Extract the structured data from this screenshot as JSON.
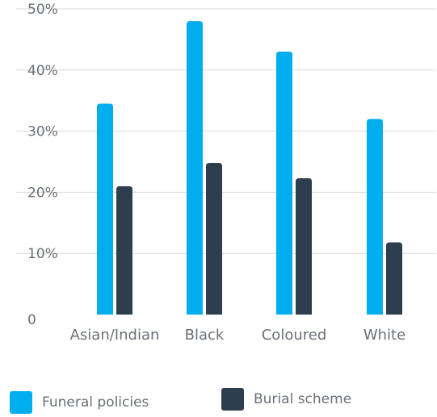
{
  "chart_data": {
    "type": "bar",
    "categories": [
      "Asian/Indian",
      "Black",
      "Coloured",
      "White"
    ],
    "series": [
      {
        "name": "Funeral policies",
        "values": [
          34.5,
          48.0,
          43.0,
          32.0
        ],
        "color": "#00aeef"
      },
      {
        "name": "Burial scheme",
        "values": [
          21.0,
          24.8,
          22.3,
          11.8
        ],
        "color": "#2e3e4f"
      }
    ],
    "ylim": [
      0,
      50
    ],
    "yticks": [
      0,
      10,
      20,
      30,
      40,
      50
    ],
    "ytick_labels": [
      "0",
      "10%",
      "20%",
      "30%",
      "40%",
      "50%"
    ],
    "grid": true,
    "legend_position": "bottom",
    "title": "",
    "xlabel": "",
    "ylabel": ""
  }
}
